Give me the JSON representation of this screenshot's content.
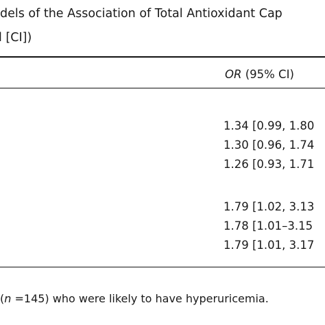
{
  "title": [
    "dels of the Association of Total Antioxidant Cap",
    "l [CI])"
  ],
  "table": {
    "header": {
      "italic": "OR",
      "text": " (95% CI)"
    },
    "rows": [
      "1.34 [0.99, 1.80",
      "1.30 [0.96, 1.74",
      "1.26 [0.93, 1.71",
      "1.79 [1.02, 3.13",
      "1.78 [1.01–3.15",
      "1.79 [1.01, 3.17"
    ]
  },
  "footnote": [
    "(",
    "n",
    " =145) who were likely to have hyperuricemia."
  ]
}
